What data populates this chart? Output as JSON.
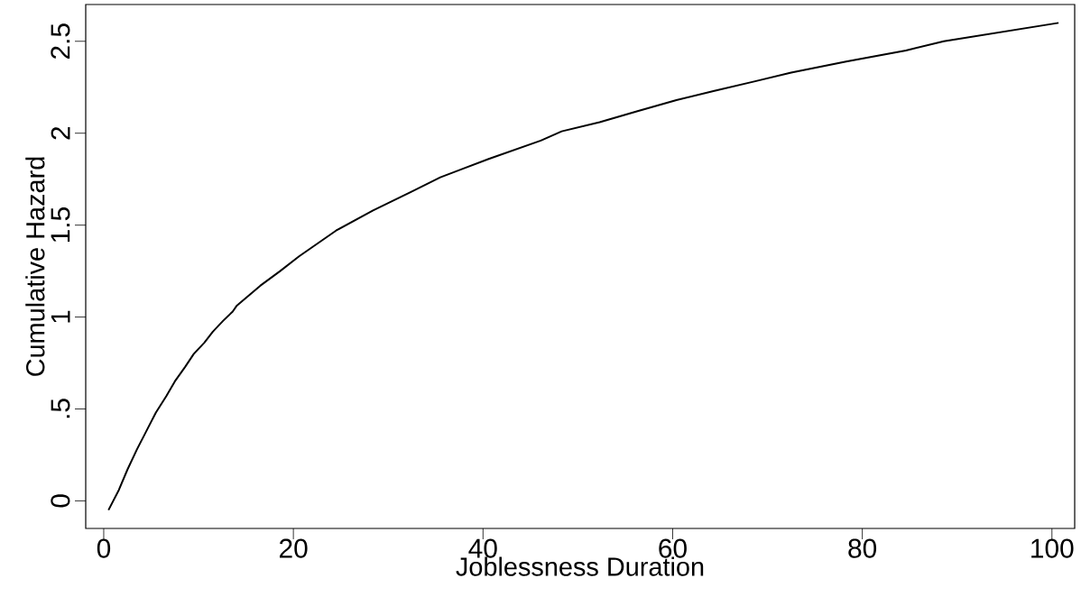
{
  "chart_data": {
    "type": "line",
    "xlabel": "Joblessness Duration",
    "ylabel": "Cumulative Hazard",
    "xlim": [
      -1.9,
      102.4
    ],
    "ylim": [
      -0.15,
      2.7
    ],
    "xticks": [
      0,
      20,
      40,
      60,
      80,
      100
    ],
    "yticks": [
      0,
      {
        "value": 0.5,
        "label": ".5"
      },
      1,
      1.5,
      2,
      2.5
    ],
    "marker": "none",
    "line_style": "solid",
    "series": [
      {
        "color": "#000000",
        "x": [
          0.5,
          1.6,
          2.5,
          3.5,
          4.6,
          5.5,
          6.6,
          7.5,
          8.6,
          9.5,
          10.6,
          11.5,
          12.6,
          13.6,
          14.0,
          16.5,
          18.6,
          20.6,
          24.5,
          28.4,
          32.4,
          35.5,
          40.6,
          46.1,
          48.3,
          52.3,
          56.3,
          60.4,
          64.4,
          68.5,
          72.5,
          78.3,
          84.6,
          88.6,
          100.7
        ],
        "values": [
          -0.05,
          0.06,
          0.17,
          0.28,
          0.39,
          0.48,
          0.57,
          0.65,
          0.73,
          0.8,
          0.86,
          0.92,
          0.98,
          1.03,
          1.06,
          1.17,
          1.25,
          1.33,
          1.47,
          1.58,
          1.68,
          1.76,
          1.86,
          1.96,
          2.01,
          2.06,
          2.12,
          2.18,
          2.23,
          2.28,
          2.33,
          2.39,
          2.45,
          2.5,
          2.6
        ]
      }
    ]
  }
}
